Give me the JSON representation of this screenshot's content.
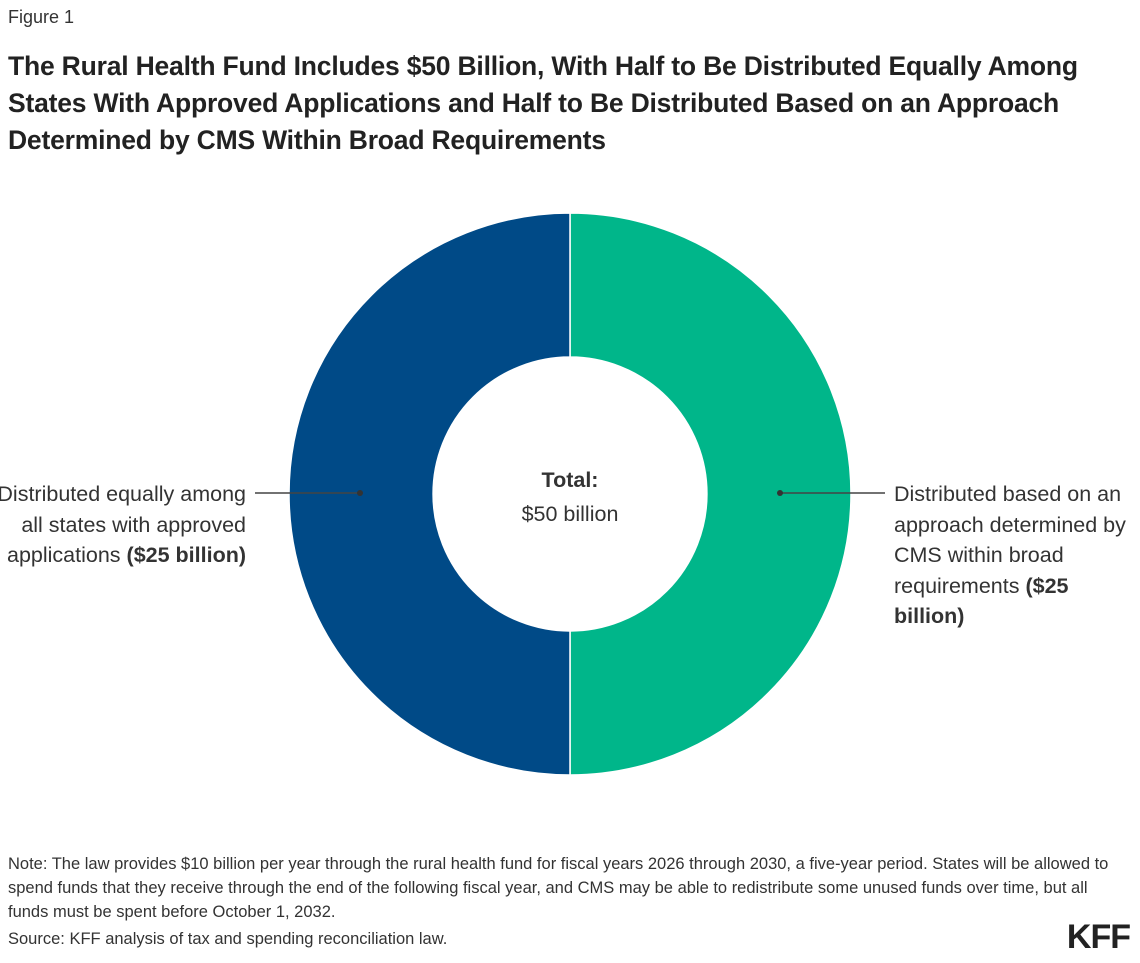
{
  "figure_label": "Figure 1",
  "chart_data": {
    "type": "pie",
    "donut": true,
    "title": "The Rural Health Fund Includes $50 Billion, With Half to Be Distributed Equally Among States With Approved Applications and Half to Be Distributed Based on an Approach Determined by CMS Within Broad Requirements",
    "center_label": {
      "title": "Total:",
      "value": "$50 billion"
    },
    "slices": [
      {
        "label": "Distributed based on an approach determined by CMS within broad requirements",
        "amount": "($25 billion)",
        "value": 25,
        "color": "#00b68a"
      },
      {
        "label": "Distributed equally among all states with approved applications",
        "amount": "($25 billion)",
        "value": 25,
        "color": "#004a87"
      }
    ],
    "units": "billion dollars"
  },
  "note": "Note: The law provides $10 billion per year through the rural health fund for fiscal years 2026 through 2030, a five-year period. States will be allowed to spend funds that they receive through the end of the following fiscal year, and CMS may be able to redistribute some unused funds over time, but all funds must be spent before October 1, 2032.",
  "source": "Source: KFF analysis of tax and spending reconciliation law.",
  "logo": "KFF"
}
